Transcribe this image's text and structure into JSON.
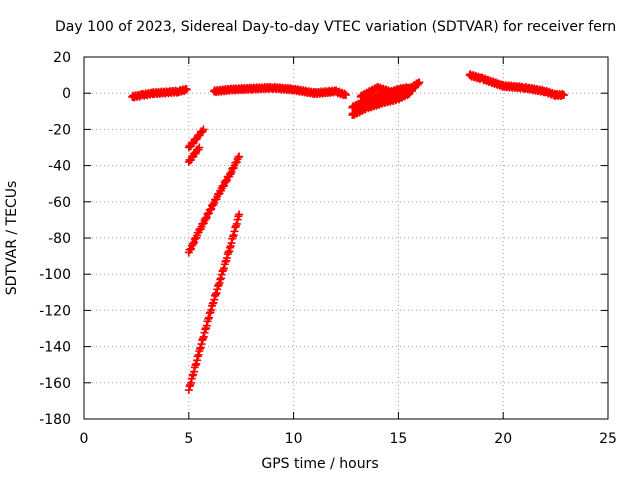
{
  "chart_data": {
    "type": "scatter",
    "title": "Day 100 of 2023, Sidereal Day-to-day VTEC variation (SDTVAR) for receiver fern",
    "xlabel": "GPS time / hours",
    "ylabel": "SDTVAR / TECUs",
    "xlim": [
      0,
      25
    ],
    "ylim": [
      -180,
      20
    ],
    "xticks": [
      0,
      5,
      10,
      15,
      20,
      25
    ],
    "yticks": [
      20,
      0,
      -20,
      -40,
      -60,
      -80,
      -100,
      -120,
      -140,
      -160,
      -180
    ],
    "grid": true,
    "marker": "+",
    "series_color": "#ff0000",
    "series": [
      {
        "segments": [
          [
            [
              2.3,
              -2
            ],
            [
              2.8,
              -1
            ],
            [
              3.3,
              0
            ],
            [
              4.0,
              0.5
            ],
            [
              4.5,
              1
            ],
            [
              4.9,
              2
            ]
          ],
          [
            [
              5.0,
              -30
            ],
            [
              5.3,
              -26
            ],
            [
              5.7,
              -20
            ]
          ],
          [
            [
              5.0,
              -38
            ],
            [
              5.25,
              -34
            ],
            [
              5.5,
              -30
            ]
          ],
          [
            [
              5.0,
              -88
            ],
            [
              5.5,
              -76
            ],
            [
              6.0,
              -65
            ],
            [
              6.5,
              -54
            ],
            [
              7.0,
              -44
            ],
            [
              7.4,
              -35
            ]
          ],
          [
            [
              5.0,
              -164
            ],
            [
              5.5,
              -143
            ],
            [
              6.0,
              -122
            ],
            [
              6.5,
              -103
            ],
            [
              7.0,
              -84
            ],
            [
              7.4,
              -67
            ]
          ],
          [
            [
              6.2,
              1
            ],
            [
              7.0,
              2
            ],
            [
              8.0,
              2.5
            ],
            [
              9.0,
              3
            ],
            [
              10.0,
              2
            ],
            [
              11.0,
              0
            ],
            [
              12.0,
              1
            ],
            [
              12.5,
              -1
            ]
          ],
          [
            [
              12.8,
              -12
            ],
            [
              13.5,
              -8
            ],
            [
              14.3,
              -5
            ],
            [
              15.0,
              -3
            ],
            [
              15.5,
              0
            ],
            [
              15.9,
              5
            ]
          ],
          [
            [
              12.8,
              -8
            ],
            [
              13.5,
              -4
            ],
            [
              14.3,
              -1
            ],
            [
              15.0,
              2
            ],
            [
              15.5,
              3
            ]
          ],
          [
            [
              13.2,
              -2
            ],
            [
              14.0,
              3
            ],
            [
              14.8,
              0
            ],
            [
              15.5,
              2
            ],
            [
              16.0,
              6
            ]
          ],
          [
            [
              18.4,
              10
            ],
            [
              19.0,
              8
            ],
            [
              20.0,
              4
            ],
            [
              21.0,
              3
            ],
            [
              22.0,
              1
            ],
            [
              22.5,
              -1
            ],
            [
              22.9,
              -1
            ]
          ]
        ]
      }
    ]
  }
}
